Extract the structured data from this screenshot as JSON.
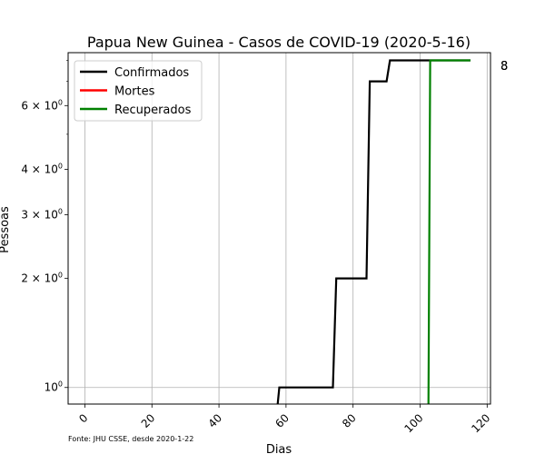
{
  "chart_data": {
    "type": "line",
    "title": "Papua New Guinea - Casos de COVID-19 (2020-5-16)",
    "xlabel": "Dias",
    "ylabel": "Pessoas",
    "xlim": [
      -5,
      121
    ],
    "ylim": [
      0.9,
      8.4
    ],
    "yscale": "log",
    "grid": true,
    "legend_position": "top-left",
    "xticks": [
      0,
      20,
      40,
      60,
      80,
      100,
      120
    ],
    "xtick_labels": [
      "0",
      "20",
      "40",
      "60",
      "80",
      "100",
      "120"
    ],
    "yticks": [
      1,
      2,
      3,
      4,
      6
    ],
    "ytick_labels": [
      {
        "base": "10",
        "exp": "0"
      },
      {
        "base": "2 × 10",
        "exp": "0"
      },
      {
        "base": "3 × 10",
        "exp": "0"
      },
      {
        "base": "4 × 10",
        "exp": "0"
      },
      {
        "base": "6 × 10",
        "exp": "0"
      }
    ],
    "yminor_ticks": [
      5,
      7,
      8
    ],
    "series": [
      {
        "name": "Confirmados",
        "color": "#000000",
        "x": [
          57.5,
          58,
          74,
          75,
          84,
          85,
          90,
          91,
          115
        ],
        "y": [
          0.9,
          1,
          1,
          2,
          2,
          7,
          7,
          8,
          8
        ]
      },
      {
        "name": "Mortes",
        "color": "#ff0000",
        "x": [],
        "y": []
      },
      {
        "name": "Recuperados",
        "color": "#008000",
        "x": [
          102.5,
          103,
          115
        ],
        "y": [
          0.9,
          8,
          8
        ]
      }
    ],
    "end_labels": [
      "8",
      "8"
    ]
  },
  "source_note": "Fonte: JHU CSSE, desde 2020-1-22"
}
